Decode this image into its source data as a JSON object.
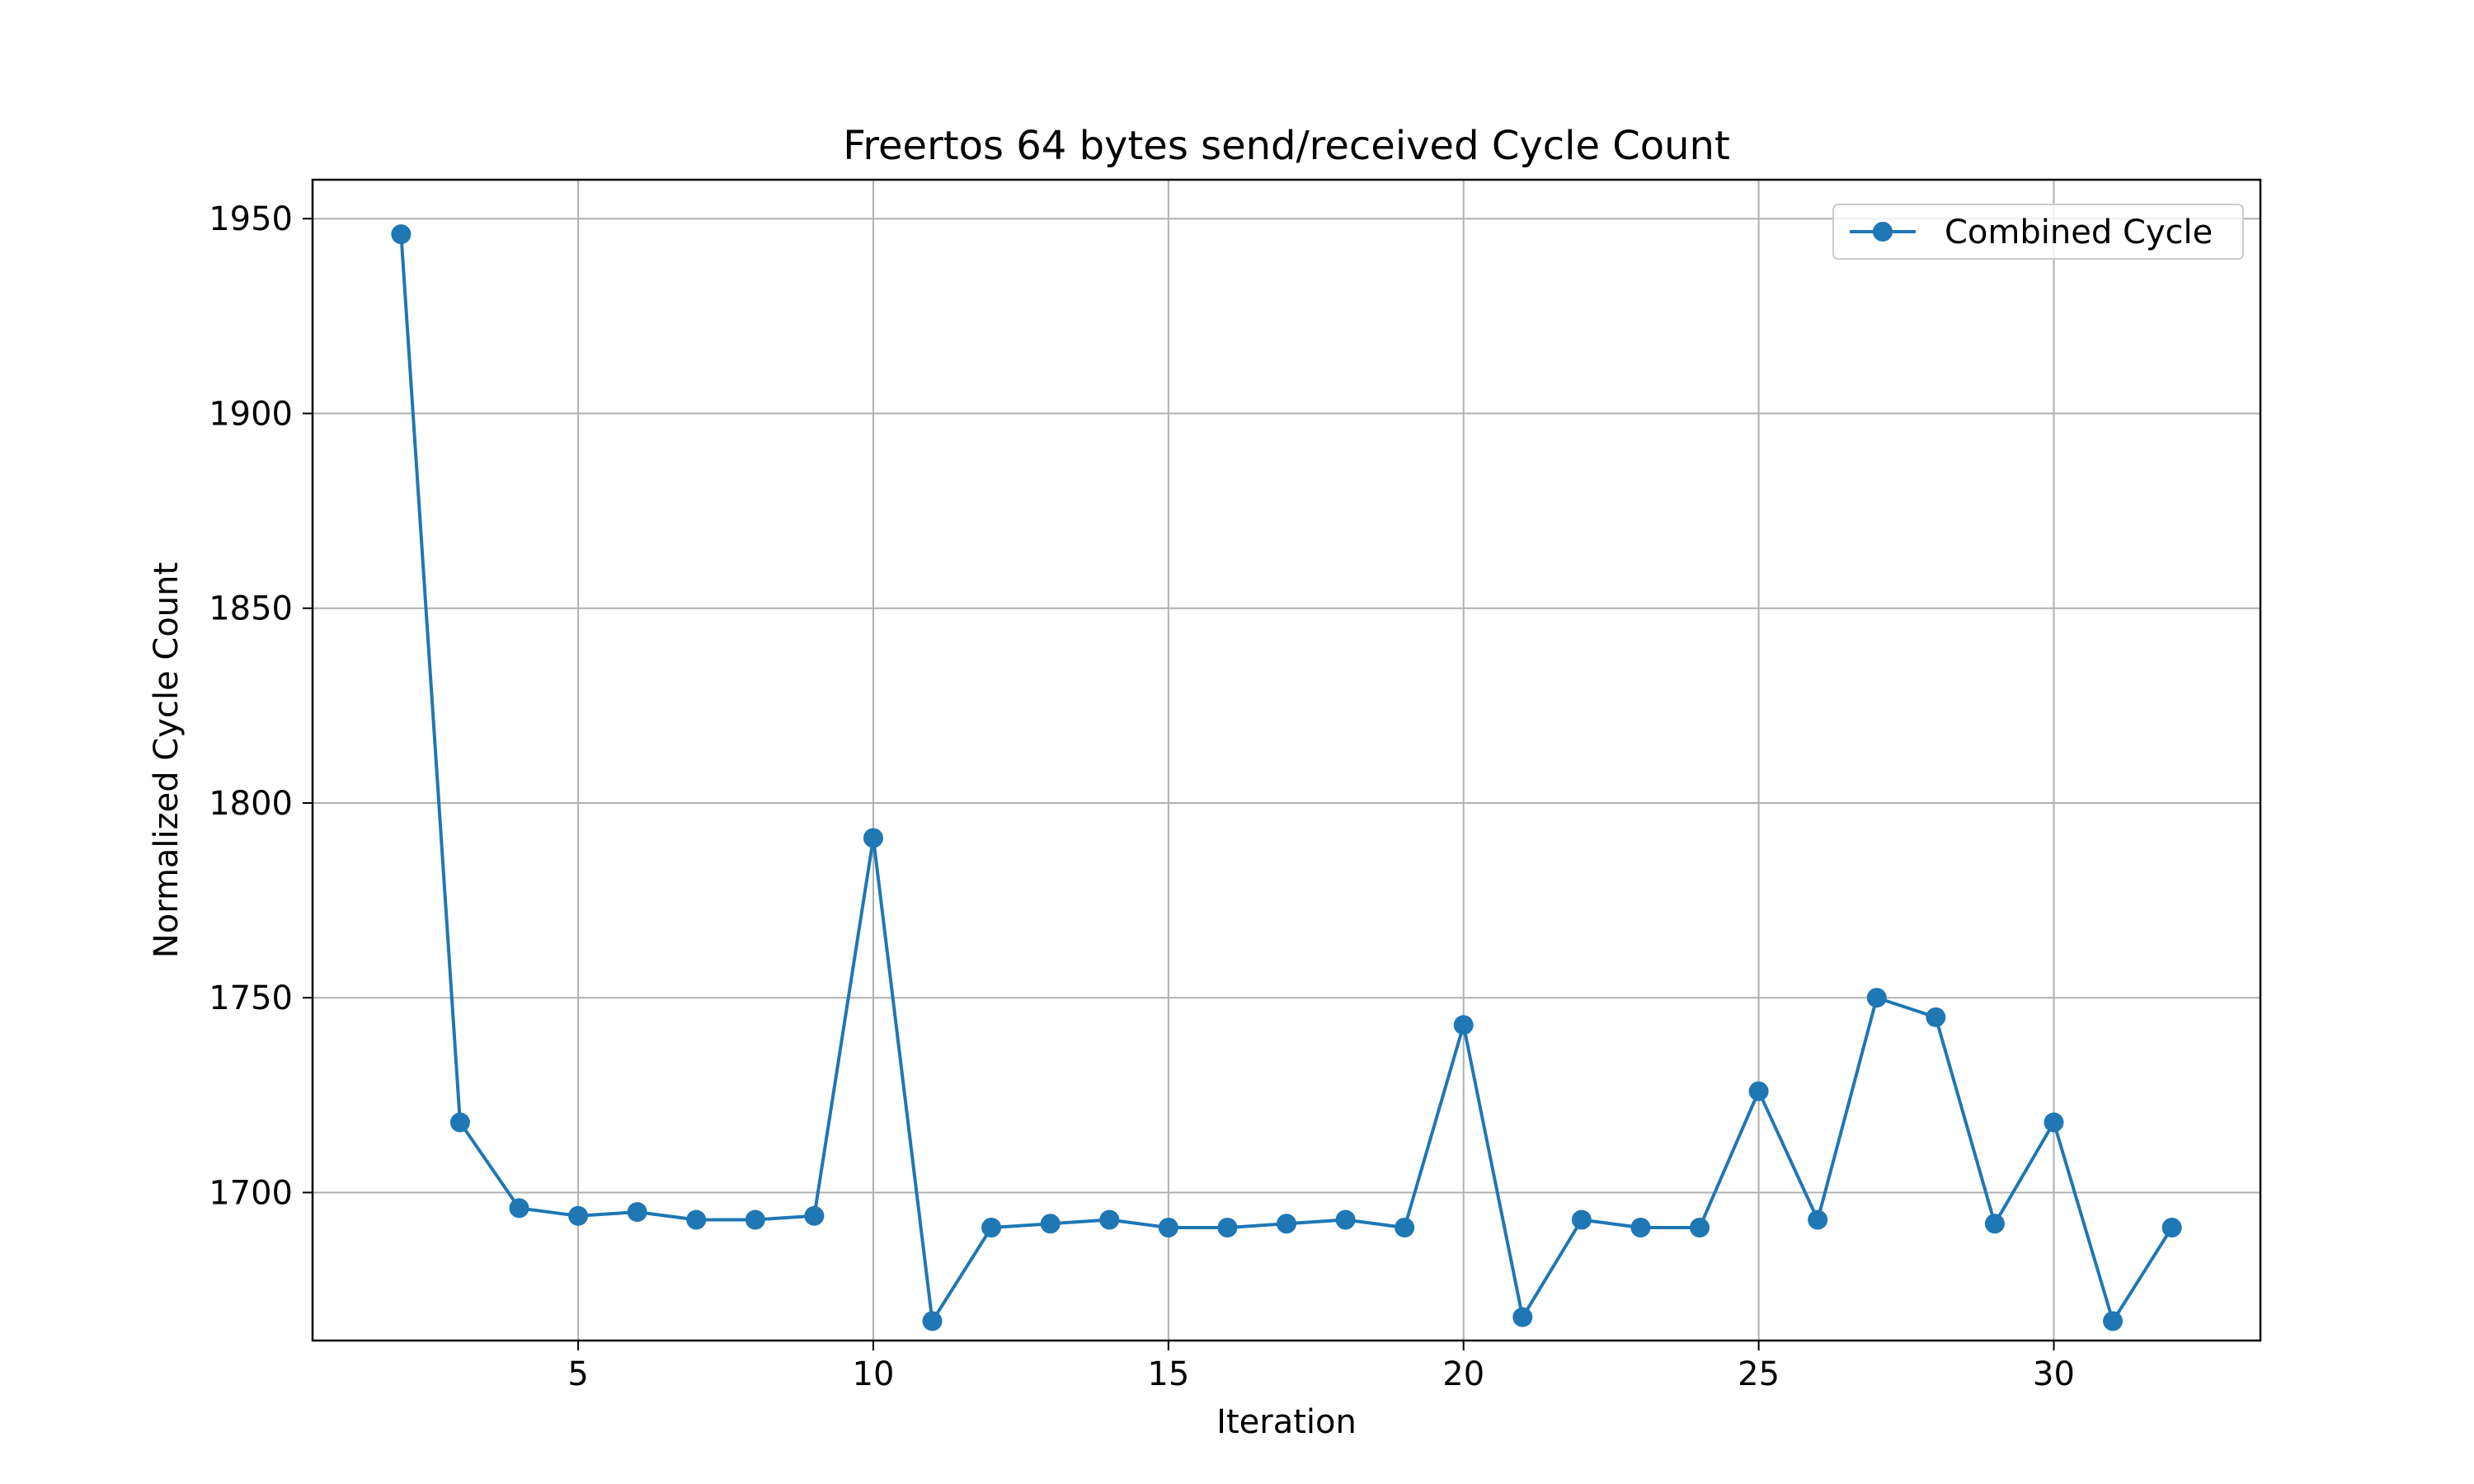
{
  "chart_data": {
    "type": "line",
    "title": "Freertos 64 bytes send/received Cycle Count",
    "xlabel": "Iteration",
    "ylabel": "Normalized Cycle Count",
    "xlim": [
      0.5,
      33.5
    ],
    "ylim": [
      1662,
      1960
    ],
    "xticks": [
      5,
      10,
      15,
      20,
      25,
      30
    ],
    "yticks": [
      1700,
      1750,
      1800,
      1850,
      1900,
      1950
    ],
    "grid": true,
    "legend_position": "top-right",
    "series": [
      {
        "name": "Combined Cycle",
        "color": "#1f77b4",
        "marker": "circle",
        "x": [
          2,
          3,
          4,
          5,
          6,
          7,
          8,
          9,
          10,
          11,
          12,
          13,
          14,
          15,
          16,
          17,
          18,
          19,
          20,
          21,
          22,
          23,
          24,
          25,
          26,
          27,
          28,
          29,
          30,
          31,
          32
        ],
        "y": [
          1946,
          1718,
          1696,
          1694,
          1695,
          1693,
          1693,
          1694,
          1791,
          1667,
          1691,
          1692,
          1693,
          1691,
          1691,
          1692,
          1693,
          1691,
          1743,
          1668,
          1693,
          1691,
          1691,
          1726,
          1693,
          1750,
          1745,
          1692,
          1718,
          1667,
          1691
        ]
      }
    ]
  }
}
